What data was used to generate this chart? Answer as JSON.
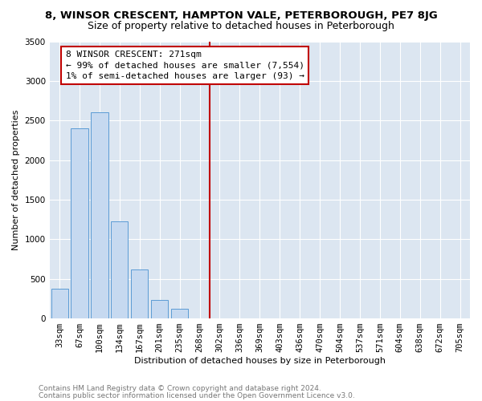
{
  "title": "8, WINSOR CRESCENT, HAMPTON VALE, PETERBOROUGH, PE7 8JG",
  "subtitle": "Size of property relative to detached houses in Peterborough",
  "xlabel": "Distribution of detached houses by size in Peterborough",
  "ylabel": "Number of detached properties",
  "categories": [
    "33sqm",
    "67sqm",
    "100sqm",
    "134sqm",
    "167sqm",
    "201sqm",
    "235sqm",
    "268sqm",
    "302sqm",
    "336sqm",
    "369sqm",
    "403sqm",
    "436sqm",
    "470sqm",
    "504sqm",
    "537sqm",
    "571sqm",
    "604sqm",
    "638sqm",
    "672sqm",
    "705sqm"
  ],
  "values": [
    380,
    2400,
    2600,
    1230,
    620,
    230,
    120,
    0,
    0,
    0,
    0,
    0,
    0,
    0,
    0,
    0,
    0,
    0,
    0,
    0,
    0
  ],
  "bar_color": "#c6d9f0",
  "bar_edge_color": "#5b9bd5",
  "vline_x": 7.5,
  "vline_color": "#c00000",
  "annotation_line1": "8 WINSOR CRESCENT: 271sqm",
  "annotation_line2": "← 99% of detached houses are smaller (7,554)",
  "annotation_line3": "1% of semi-detached houses are larger (93) →",
  "ylim": [
    0,
    3500
  ],
  "yticks": [
    0,
    500,
    1000,
    1500,
    2000,
    2500,
    3000,
    3500
  ],
  "footer_line1": "Contains HM Land Registry data © Crown copyright and database right 2024.",
  "footer_line2": "Contains public sector information licensed under the Open Government Licence v3.0.",
  "background_color": "#ffffff",
  "plot_bg_color": "#dce6f1",
  "grid_color": "#ffffff",
  "title_fontsize": 9.5,
  "subtitle_fontsize": 9,
  "axis_label_fontsize": 8,
  "tick_fontsize": 7.5,
  "annotation_fontsize": 8,
  "footer_fontsize": 6.5
}
